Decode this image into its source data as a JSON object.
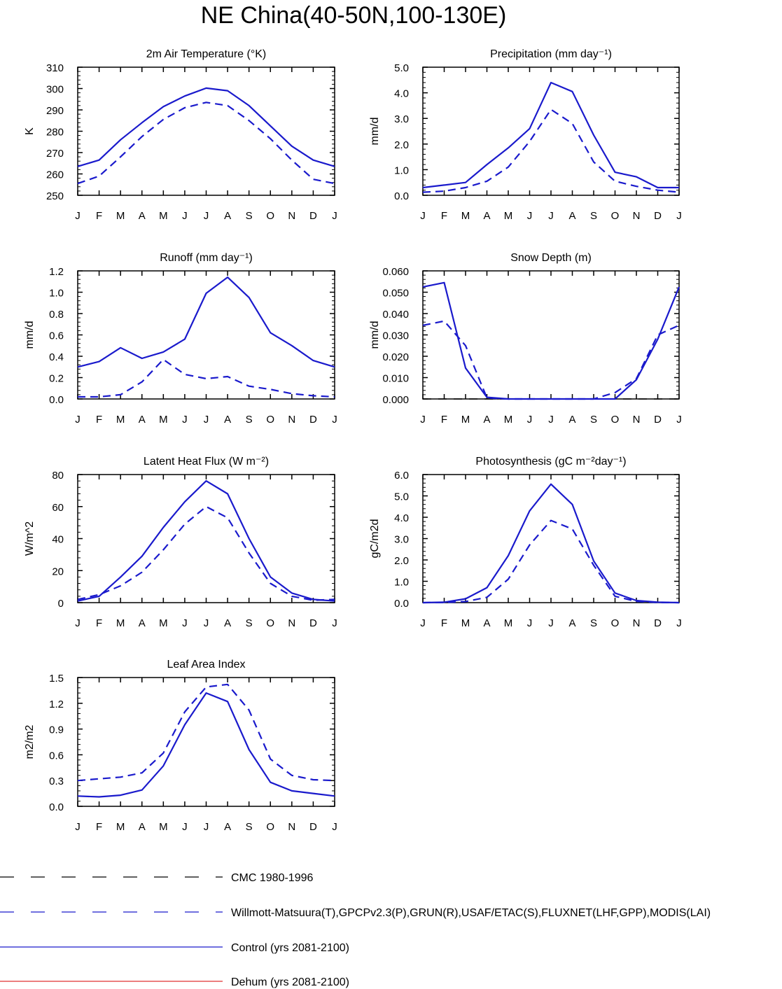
{
  "page": {
    "title": "NE China(40-50N,100-130E)"
  },
  "month_labels": [
    "J",
    "F",
    "M",
    "A",
    "M",
    "J",
    "J",
    "A",
    "S",
    "O",
    "N",
    "D",
    "J"
  ],
  "series_styles": {
    "obs": {
      "color": "#1a1acc",
      "dashed": true
    },
    "control": {
      "color": "#1a1acc",
      "dashed": false
    }
  },
  "chart_data": [
    {
      "type": "line",
      "title": "2m Air Temperature (°K)",
      "ylabel": "K",
      "ylim": [
        250,
        310
      ],
      "yticks": [
        "250",
        "260",
        "270",
        "280",
        "290",
        "300",
        "310"
      ],
      "grid": false,
      "series": [
        {
          "key": "obs",
          "values": [
            255.5,
            259,
            268,
            277.5,
            285.5,
            291,
            293.5,
            292,
            285,
            276.5,
            266.5,
            257.5,
            255.5
          ]
        },
        {
          "key": "control",
          "values": [
            263.5,
            266.5,
            276,
            284,
            291.5,
            296.5,
            300.2,
            299,
            292,
            282.5,
            273,
            266.5,
            263.5
          ]
        }
      ]
    },
    {
      "type": "line",
      "title": "Precipitation (mm day⁻¹)",
      "ylabel": "mm/d",
      "ylim": [
        0,
        5
      ],
      "yticks": [
        "0.0",
        "1.0",
        "2.0",
        "3.0",
        "4.0",
        "5.0"
      ],
      "grid": false,
      "series": [
        {
          "key": "obs",
          "values": [
            0.12,
            0.16,
            0.3,
            0.55,
            1.1,
            2.1,
            3.35,
            2.8,
            1.3,
            0.55,
            0.35,
            0.2,
            0.12
          ]
        },
        {
          "key": "control",
          "values": [
            0.3,
            0.4,
            0.5,
            1.2,
            1.85,
            2.6,
            4.4,
            4.05,
            2.35,
            0.9,
            0.72,
            0.3,
            0.3
          ]
        }
      ]
    },
    {
      "type": "line",
      "title": "Runoff (mm day⁻¹)",
      "ylabel": "mm/d",
      "ylim": [
        0,
        1.2
      ],
      "yticks": [
        "0.0",
        "0.2",
        "0.4",
        "0.6",
        "0.8",
        "1.0",
        "1.2"
      ],
      "grid": false,
      "series": [
        {
          "key": "obs",
          "values": [
            0.02,
            0.02,
            0.04,
            0.16,
            0.37,
            0.23,
            0.19,
            0.21,
            0.12,
            0.09,
            0.05,
            0.03,
            0.02
          ]
        },
        {
          "key": "control",
          "values": [
            0.3,
            0.35,
            0.48,
            0.38,
            0.44,
            0.56,
            0.99,
            1.14,
            0.95,
            0.62,
            0.5,
            0.36,
            0.3
          ]
        }
      ]
    },
    {
      "type": "line",
      "title": "Snow Depth (m)",
      "ylabel": "mm/d",
      "ylim": [
        0,
        0.06
      ],
      "yticks": [
        "0.000",
        "0.010",
        "0.020",
        "0.030",
        "0.040",
        "0.050",
        "0.060"
      ],
      "grid": false,
      "series": [
        {
          "key": "obs",
          "values": [
            0.0345,
            0.0365,
            0.025,
            0.0005,
            0,
            0,
            0,
            0,
            0,
            0.003,
            0.0095,
            0.03,
            0.0345
          ]
        },
        {
          "key": "control",
          "values": [
            0.0525,
            0.0545,
            0.0145,
            0.0008,
            0,
            0,
            0,
            0,
            0,
            0,
            0.009,
            0.028,
            0.0525
          ]
        }
      ]
    },
    {
      "type": "line",
      "title": "Latent Heat Flux (W m⁻²)",
      "ylabel": "W/m^2",
      "ylim": [
        0,
        80
      ],
      "yticks": [
        "0",
        "20",
        "40",
        "60",
        "80"
      ],
      "grid": false,
      "series": [
        {
          "key": "obs",
          "values": [
            2,
            5,
            10.5,
            19,
            33,
            49,
            60,
            53,
            31,
            12,
            4,
            1.5,
            2
          ]
        },
        {
          "key": "control",
          "values": [
            1,
            4,
            16,
            29,
            47,
            63,
            76,
            68,
            40,
            16,
            6,
            2,
            1
          ]
        }
      ]
    },
    {
      "type": "line",
      "title": "Photosynthesis (gC m⁻²day⁻¹)",
      "ylabel": "gC/m2d",
      "ylim": [
        0,
        6
      ],
      "yticks": [
        "0.0",
        "1.0",
        "2.0",
        "3.0",
        "4.0",
        "5.0",
        "6.0"
      ],
      "grid": false,
      "series": [
        {
          "key": "obs",
          "values": [
            0,
            0.01,
            0.05,
            0.25,
            1.1,
            2.7,
            3.85,
            3.45,
            1.75,
            0.3,
            0.06,
            0.01,
            0
          ]
        },
        {
          "key": "control",
          "values": [
            0,
            0.02,
            0.18,
            0.7,
            2.2,
            4.3,
            5.55,
            4.6,
            1.95,
            0.45,
            0.1,
            0.02,
            0
          ]
        }
      ]
    },
    {
      "type": "line",
      "title": "Leaf Area Index",
      "ylabel": "m2/m2",
      "ylim": [
        0,
        1.5
      ],
      "yticks": [
        "0.0",
        "0.3",
        "0.6",
        "0.9",
        "1.2",
        "1.5"
      ],
      "grid": false,
      "series": [
        {
          "key": "obs",
          "values": [
            0.3,
            0.32,
            0.34,
            0.39,
            0.62,
            1.1,
            1.39,
            1.42,
            1.12,
            0.55,
            0.36,
            0.31,
            0.3
          ]
        },
        {
          "key": "control",
          "values": [
            0.12,
            0.11,
            0.13,
            0.19,
            0.47,
            0.95,
            1.32,
            1.22,
            0.66,
            0.28,
            0.18,
            0.15,
            0.12
          ]
        }
      ]
    }
  ],
  "legend": {
    "placement": "bottom",
    "items": [
      {
        "label": "CMC 1980-1996",
        "color": "#000000",
        "style": "dashed"
      },
      {
        "label": "Willmott-Matsuura(T),GPCPv2.3(P),GRUN(R),USAF/ETAC(S),FLUXNET(LHF,GPP),MODIS(LAI)",
        "color": "#1a1acc",
        "style": "dashed"
      },
      {
        "label": "Control (yrs 2081-2100)",
        "color": "#1a1acc",
        "style": "solid"
      },
      {
        "label": "Dehum (yrs 2081-2100)",
        "color": "#e03030",
        "style": "solid"
      }
    ]
  }
}
